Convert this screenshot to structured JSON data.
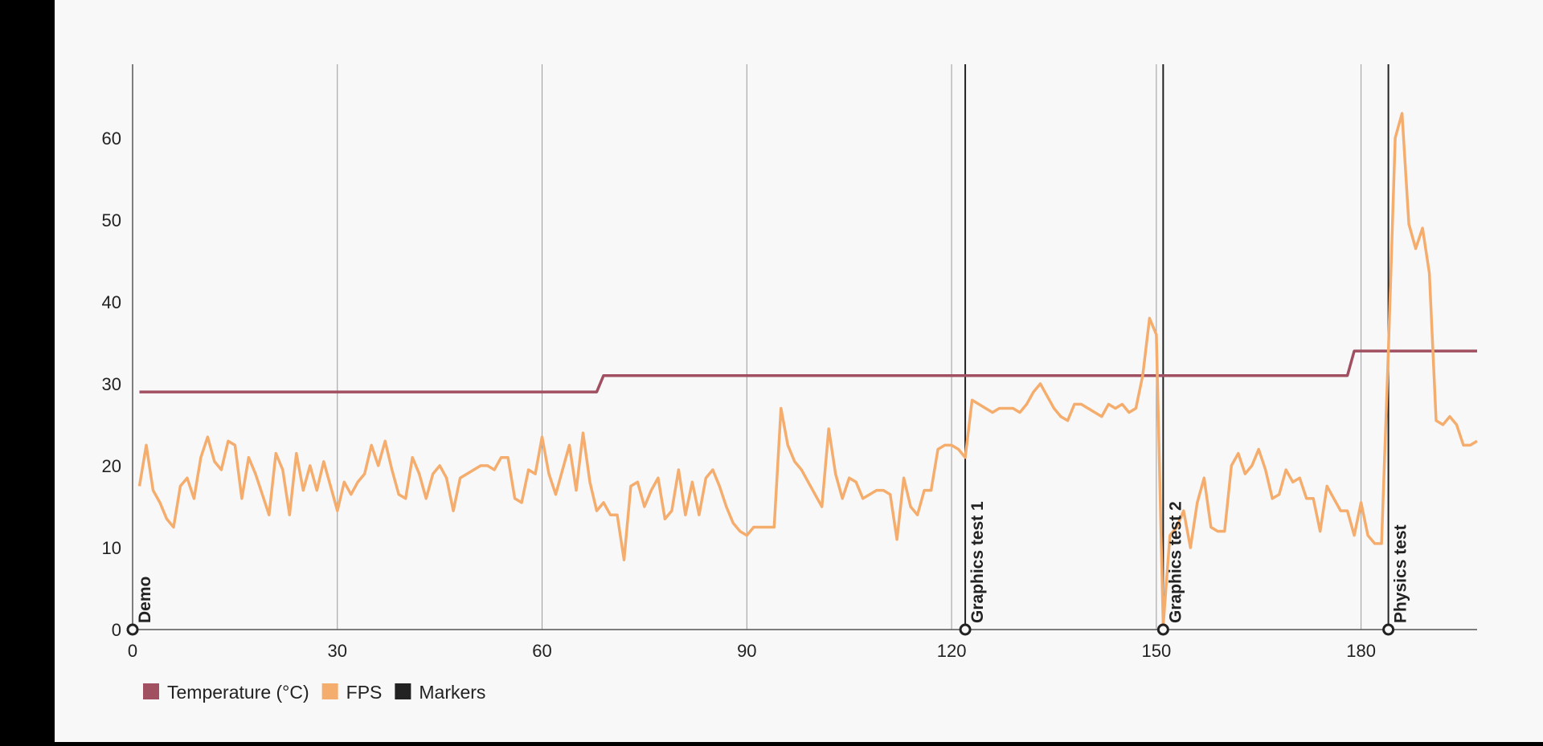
{
  "chart_data": {
    "type": "line",
    "title": "",
    "xlabel": "",
    "ylabel": "",
    "xlim": [
      0,
      197
    ],
    "ylim": [
      0,
      69
    ],
    "x_ticks": [
      0,
      30,
      60,
      90,
      120,
      150,
      180
    ],
    "y_ticks": [
      0,
      10,
      20,
      30,
      40,
      50,
      60
    ],
    "grid": "vertical",
    "legend_position": "bottom-left",
    "legend": [
      {
        "name": "Temperature (°C)",
        "color": "#a05060"
      },
      {
        "name": "FPS",
        "color": "#f5ad6e"
      },
      {
        "name": "Markers",
        "color": "#222222"
      }
    ],
    "markers": [
      {
        "x": 0,
        "label": "Demo"
      },
      {
        "x": 122,
        "label": "Graphics test 1"
      },
      {
        "x": 151,
        "label": "Graphics test 2"
      },
      {
        "x": 184,
        "label": "Physics test"
      }
    ],
    "series": [
      {
        "name": "Temperature (°C)",
        "color": "#a05060",
        "x": [
          1,
          68,
          69,
          178,
          179,
          197
        ],
        "y": [
          29,
          29,
          31,
          31,
          34,
          34
        ]
      },
      {
        "name": "FPS",
        "color": "#f5ad6e",
        "x": [
          1,
          2,
          3,
          4,
          5,
          6,
          7,
          8,
          9,
          10,
          11,
          12,
          13,
          14,
          15,
          16,
          17,
          18,
          19,
          20,
          21,
          22,
          23,
          24,
          25,
          26,
          27,
          28,
          29,
          30,
          31,
          32,
          33,
          34,
          35,
          36,
          37,
          38,
          39,
          40,
          41,
          42,
          43,
          44,
          45,
          46,
          47,
          48,
          49,
          50,
          51,
          52,
          53,
          54,
          55,
          56,
          57,
          58,
          59,
          60,
          61,
          62,
          63,
          64,
          65,
          66,
          67,
          68,
          69,
          70,
          71,
          72,
          73,
          74,
          75,
          76,
          77,
          78,
          79,
          80,
          81,
          82,
          83,
          84,
          85,
          86,
          87,
          88,
          89,
          90,
          91,
          92,
          93,
          94,
          95,
          96,
          97,
          98,
          99,
          100,
          101,
          102,
          103,
          104,
          105,
          106,
          107,
          108,
          109,
          110,
          111,
          112,
          113,
          114,
          115,
          116,
          117,
          118,
          119,
          120,
          121,
          122,
          123,
          124,
          125,
          126,
          127,
          128,
          129,
          130,
          131,
          132,
          133,
          134,
          135,
          136,
          137,
          138,
          139,
          140,
          141,
          142,
          143,
          144,
          145,
          146,
          147,
          148,
          149,
          150,
          151,
          152,
          153,
          154,
          155,
          156,
          157,
          158,
          159,
          160,
          161,
          162,
          163,
          164,
          165,
          166,
          167,
          168,
          169,
          170,
          171,
          172,
          173,
          174,
          175,
          176,
          177,
          178,
          179,
          180,
          181,
          182,
          183,
          184,
          185,
          186,
          187,
          188,
          189,
          190,
          191,
          192,
          193,
          194,
          195,
          196,
          197
        ],
        "y": [
          17.5,
          22.5,
          17,
          15.5,
          13.5,
          12.5,
          17.5,
          18.5,
          16,
          21,
          23.5,
          20.5,
          19.5,
          23,
          22.5,
          16,
          21,
          19,
          16.5,
          14,
          21.5,
          19.5,
          14,
          21.5,
          17,
          20,
          17,
          20.5,
          17.5,
          14.5,
          18,
          16.5,
          18,
          19,
          22.5,
          20,
          23,
          19.5,
          16.5,
          16,
          21,
          19,
          16,
          19,
          20,
          18.5,
          14.5,
          18.5,
          19,
          19.5,
          20,
          20,
          19.5,
          21,
          21,
          16,
          15.5,
          19.5,
          19,
          23.5,
          19,
          16.5,
          19.5,
          22.5,
          17,
          24,
          18,
          14.5,
          15.5,
          14,
          14,
          8.5,
          17.5,
          18,
          15,
          17,
          18.5,
          13.5,
          14.5,
          19.5,
          14,
          18,
          14,
          18.5,
          19.5,
          17.5,
          15,
          13,
          12,
          11.5,
          12.5,
          12.5,
          12.5,
          12.5,
          27,
          22.5,
          20.5,
          19.5,
          18,
          16.5,
          15,
          24.5,
          19,
          16,
          18.5,
          18,
          16,
          16.5,
          17,
          17,
          16.5,
          11,
          18.5,
          15,
          14,
          17,
          17,
          22,
          22.5,
          22.5,
          22,
          21,
          28,
          27.5,
          27,
          26.5,
          27,
          27,
          27,
          26.5,
          27.5,
          29,
          30,
          28.5,
          27,
          26,
          25.5,
          27.5,
          27.5,
          27,
          26.5,
          26,
          27.5,
          27,
          27.5,
          26.5,
          27,
          31,
          38,
          36,
          0.5,
          11.5,
          12.5,
          14.5,
          10,
          15.5,
          18.5,
          12.5,
          12,
          12,
          20,
          21.5,
          19,
          20,
          22,
          19.5,
          16,
          16.5,
          19.5,
          18,
          18.5,
          16,
          16,
          12,
          17.5,
          16,
          14.5,
          14.5,
          11.5,
          15.5,
          11.5,
          10.5,
          10.5,
          34,
          60,
          63,
          49.5,
          46.5,
          49,
          43.5,
          25.5,
          25,
          26,
          25,
          22.5,
          22.5,
          23
        ]
      }
    ]
  }
}
